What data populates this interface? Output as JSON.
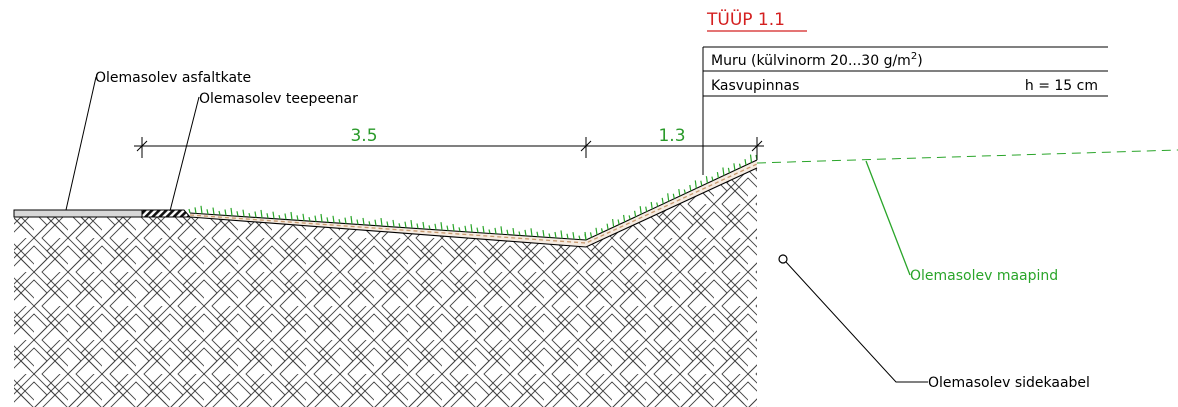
{
  "title": "TÜÜP 1.1",
  "layers_table": {
    "row1_base": "Muru (külvinorm 20...30 g/m",
    "row1_sup": "2",
    "row1_close": ")",
    "row2_name": "Kasvupinnas",
    "row2_value": "h = 15 cm"
  },
  "dimensions": {
    "left": "3.5",
    "right": "1.3"
  },
  "labels": {
    "asphalt": "Olemasolev asfaltkate",
    "shoulder": "Olemasolev teepeenar",
    "ground": "Olemasolev maapind",
    "cable": "Olemasolev sidekaabel"
  },
  "colors": {
    "grass": "#2aa52a",
    "title": "#d42020",
    "topsoil": "#c89a70",
    "line": "#000000"
  }
}
